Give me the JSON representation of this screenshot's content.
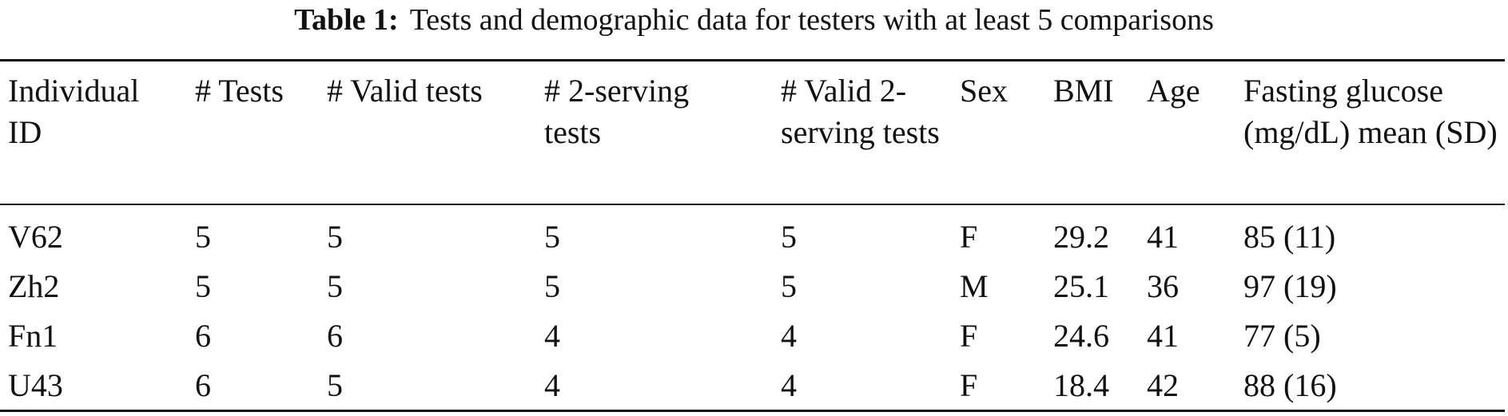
{
  "caption": {
    "label": "Table 1:",
    "text": "Tests and demographic data for testers with at least 5 comparisons"
  },
  "table": {
    "header": [
      "Individual ID",
      "# Tests",
      "# Valid tests",
      "# 2-serving tests",
      "# Valid 2-serving tests",
      "Sex",
      "BMI",
      "Age",
      "Fasting glucose (mg/dL) mean (SD)"
    ],
    "rows": [
      [
        "V62",
        "5",
        "5",
        "5",
        "5",
        "F",
        "29.2",
        "41",
        "85 (11)"
      ],
      [
        "Zh2",
        "5",
        "5",
        "5",
        "5",
        "M",
        "25.1",
        "36",
        "97 (19)"
      ],
      [
        "Fn1",
        "6",
        "6",
        "4",
        "4",
        "F",
        "24.6",
        "41",
        "77 (5)"
      ],
      [
        "U43",
        "6",
        "5",
        "4",
        "4",
        "F",
        "18.4",
        "42",
        "88 (16)"
      ]
    ]
  }
}
